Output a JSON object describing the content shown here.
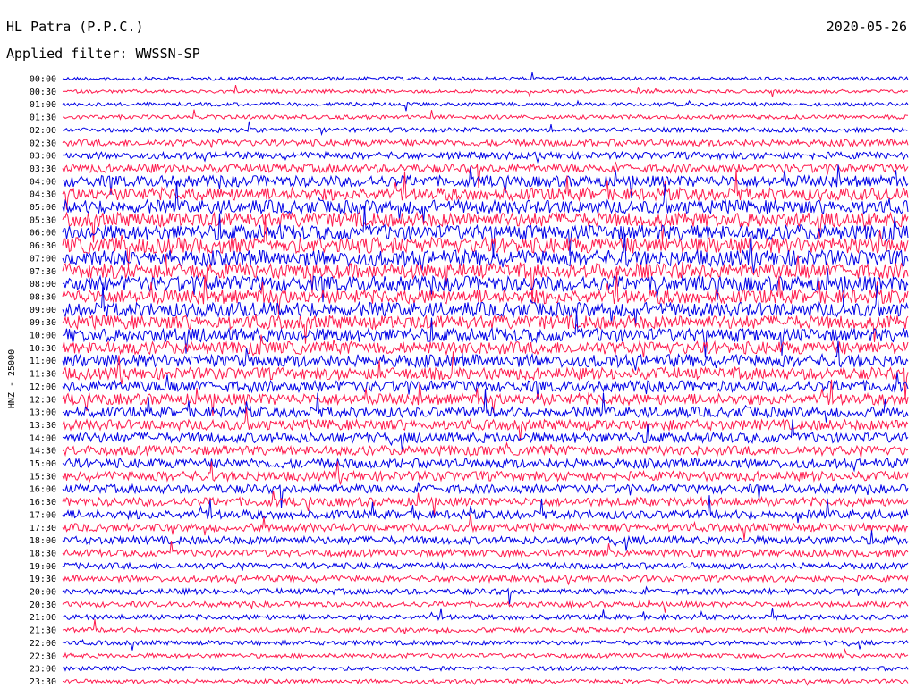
{
  "header": {
    "station": "HL Patra (P.P.C.)",
    "filter_label": "Applied filter: WWSSN-SP",
    "date": "2020-05-26"
  },
  "chart_data": {
    "type": "line",
    "title": "HL Patra (P.P.C.)",
    "subtitle": "Applied filter: WWSSN-SP",
    "date": "2020-05-26",
    "ylabel": "HNZ - 25000",
    "row_labels": [
      "00:00",
      "00:30",
      "01:00",
      "01:30",
      "02:00",
      "02:30",
      "03:00",
      "03:30",
      "04:00",
      "04:30",
      "05:00",
      "05:30",
      "06:00",
      "06:30",
      "07:00",
      "07:30",
      "08:00",
      "08:30",
      "09:00",
      "09:30",
      "10:00",
      "10:30",
      "11:00",
      "11:30",
      "12:00",
      "12:30",
      "13:00",
      "13:30",
      "14:00",
      "14:30",
      "15:00",
      "15:30",
      "16:00",
      "16:30",
      "17:00",
      "17:30",
      "18:00",
      "18:30",
      "19:00",
      "19:30",
      "20:00",
      "20:30",
      "21:00",
      "21:30",
      "22:00",
      "22:30",
      "23:00",
      "23:30"
    ],
    "row_minutes": 30,
    "series_colors": [
      "#0000e6",
      "#ff1a4d"
    ],
    "relative_activity": [
      0.08,
      0.08,
      0.1,
      0.12,
      0.15,
      0.28,
      0.3,
      0.4,
      0.55,
      0.65,
      0.7,
      0.75,
      0.8,
      0.85,
      0.85,
      0.8,
      0.8,
      0.75,
      0.75,
      0.7,
      0.7,
      0.65,
      0.65,
      0.6,
      0.55,
      0.55,
      0.5,
      0.5,
      0.5,
      0.45,
      0.45,
      0.45,
      0.4,
      0.4,
      0.4,
      0.35,
      0.35,
      0.3,
      0.25,
      0.25,
      0.22,
      0.2,
      0.18,
      0.16,
      0.15,
      0.14,
      0.13,
      0.12
    ],
    "grid": false
  }
}
